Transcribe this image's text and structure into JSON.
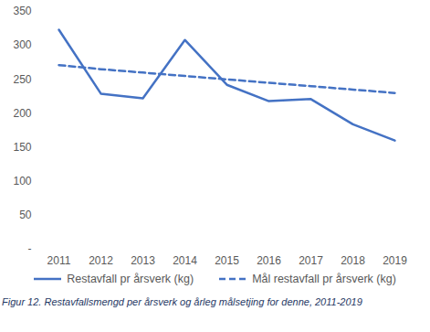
{
  "chart_data": {
    "type": "line",
    "caption": "Figur 12. Restavfallsmengd per årsverk og årleg målsetjing for denne, 2011-2019",
    "categories": [
      "2011",
      "2012",
      "2013",
      "2014",
      "2015",
      "2016",
      "2017",
      "2018",
      "2019"
    ],
    "series": [
      {
        "name": "Restavfall pr årsverk (kg)",
        "color": "#4472c4",
        "line_style": "solid",
        "values": [
          323,
          229,
          222,
          308,
          242,
          218,
          221,
          184,
          160
        ]
      },
      {
        "name": "Mål restavfall pr årsverk (kg)",
        "color": "#4472c4",
        "line_style": "dashed",
        "values": [
          271,
          265,
          260,
          255,
          250,
          245,
          240,
          235,
          230
        ]
      }
    ],
    "ylim": [
      0,
      350
    ],
    "yticks": [
      {
        "value": 0,
        "label": "-"
      },
      50,
      100,
      150,
      200,
      250,
      300,
      350
    ],
    "grid": false,
    "legend": "bottom"
  }
}
